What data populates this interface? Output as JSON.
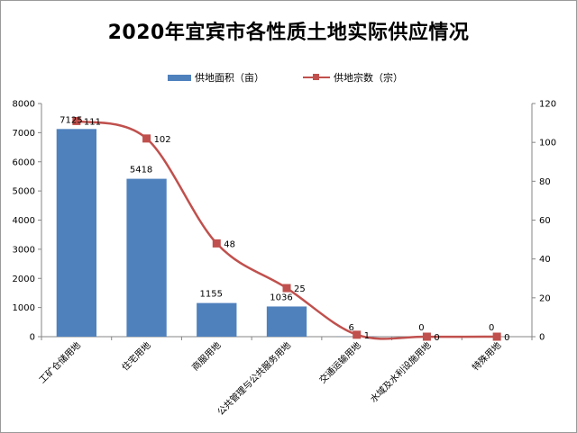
{
  "chart_data": {
    "type": "bar",
    "title": "2020年宜宾市各性质土地实际供应情况",
    "categories": [
      "工矿仓储用地",
      "住宅用地",
      "商服用地",
      "公共管理与公共服务用地",
      "交通运输用地",
      "水域及水利设施用地",
      "特殊用地"
    ],
    "series": [
      {
        "name": "供地面积（亩）",
        "type": "bar",
        "axis": "left",
        "values": [
          7125,
          5418,
          1155,
          1036,
          6,
          0,
          0
        ],
        "color": "#4f81bd"
      },
      {
        "name": "供地宗数（宗）",
        "type": "line",
        "axis": "right",
        "values": [
          111,
          102,
          48,
          25,
          1,
          0,
          0
        ],
        "color": "#c0504d",
        "smooth": true,
        "marker": "square"
      }
    ],
    "left_axis": {
      "ylim": [
        0,
        8000
      ],
      "ticks": [
        0,
        1000,
        2000,
        3000,
        4000,
        5000,
        6000,
        7000,
        8000
      ]
    },
    "right_axis": {
      "ylim": [
        0,
        120
      ],
      "ticks": [
        0,
        20,
        40,
        60,
        80,
        100,
        120
      ]
    },
    "grid": false,
    "legend_position": "top"
  }
}
